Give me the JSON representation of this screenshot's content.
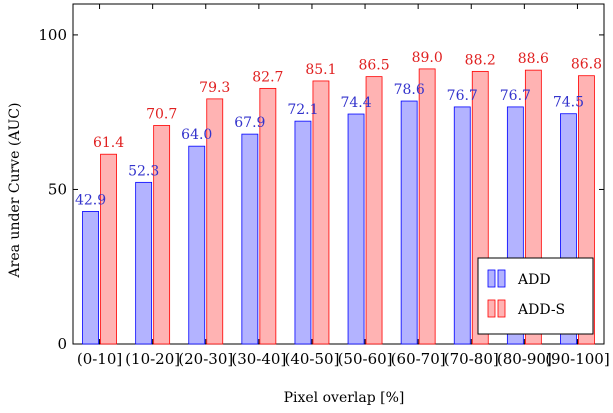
{
  "chart_data": {
    "type": "bar",
    "xlabel": "Pixel overlap [%]",
    "ylabel": "Area under Curve (AUC)",
    "ylim": [
      0,
      110
    ],
    "yticks": [
      0,
      50,
      100
    ],
    "grid": false,
    "legend_position": "bottom-right",
    "categories": [
      "(0-10]",
      "(10-20]",
      "(20-30]",
      "(30-40]",
      "(40-50]",
      "(50-60]",
      "(60-70]",
      "(70-80]",
      "(80-90]",
      "(90-100]"
    ],
    "series": [
      {
        "name": "ADD",
        "values": [
          42.9,
          52.3,
          64.0,
          67.9,
          72.1,
          74.4,
          78.6,
          76.7,
          76.7,
          74.5
        ],
        "labels": [
          "42.9",
          "52.3",
          "64.0",
          "67.9",
          "72.1",
          "74.4",
          "78.6",
          "76.7",
          "76.7",
          "74.5"
        ],
        "fill": "#b3b3ff",
        "stroke": "#0000ff",
        "label_color": "#3333cc"
      },
      {
        "name": "ADD-S",
        "values": [
          61.4,
          70.7,
          79.3,
          82.7,
          85.1,
          86.5,
          89.0,
          88.2,
          88.6,
          86.8
        ],
        "labels": [
          "61.4",
          "70.7",
          "79.3",
          "82.7",
          "85.1",
          "86.5",
          "89.0",
          "88.2",
          "88.6",
          "86.8"
        ],
        "fill": "#ffb3b3",
        "stroke": "#ff0000",
        "label_color": "#e02020"
      }
    ]
  }
}
